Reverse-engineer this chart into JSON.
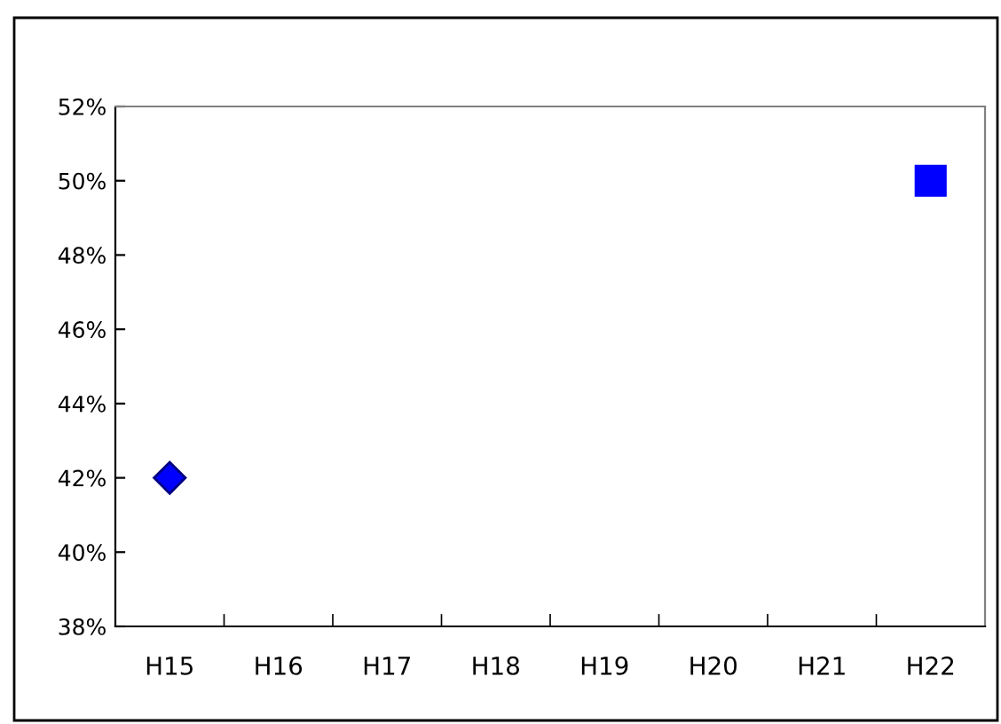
{
  "chart_data": {
    "type": "scatter",
    "categories": [
      "H15",
      "H16",
      "H17",
      "H18",
      "H19",
      "H20",
      "H21",
      "H22"
    ],
    "series": [
      {
        "color": "#0000ff",
        "marker": "diamond",
        "values": [
          42,
          null,
          null,
          null,
          null,
          null,
          null,
          null
        ]
      },
      {
        "color": "#0000ff",
        "marker": "square",
        "values": [
          null,
          null,
          null,
          null,
          null,
          null,
          null,
          50
        ]
      }
    ],
    "ylim": [
      38,
      52
    ],
    "yticks": [
      {
        "value": 38,
        "label": "38%"
      },
      {
        "value": 40,
        "label": "40%"
      },
      {
        "value": 42,
        "label": "42%"
      },
      {
        "value": 44,
        "label": "44%"
      },
      {
        "value": 46,
        "label": "46%"
      },
      {
        "value": 48,
        "label": "48%"
      },
      {
        "value": 50,
        "label": "50%"
      },
      {
        "value": 52,
        "label": "52%"
      }
    ],
    "grid": false,
    "legend": false
  }
}
